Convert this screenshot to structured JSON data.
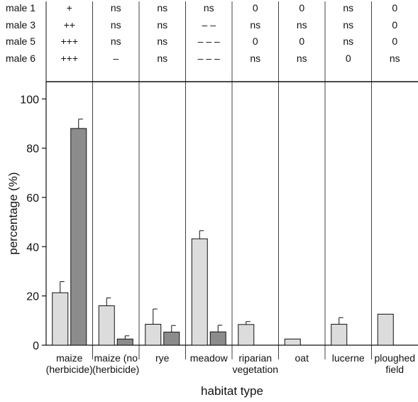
{
  "significance_table": {
    "rows": [
      {
        "label": "male 1",
        "cells": [
          "+",
          "ns",
          "ns",
          "ns",
          "0",
          "0",
          "ns",
          "0"
        ]
      },
      {
        "label": "male 3",
        "cells": [
          "++",
          "ns",
          "ns",
          "– –",
          "ns",
          "ns",
          "ns",
          "0"
        ]
      },
      {
        "label": "male 5",
        "cells": [
          "+++",
          "ns",
          "ns",
          "– – –",
          "0",
          "0",
          "ns",
          "0"
        ]
      },
      {
        "label": "male 6",
        "cells": [
          "+++",
          "–",
          "ns",
          "– – –",
          "ns",
          "ns",
          "0",
          "ns"
        ]
      }
    ]
  },
  "chart_data": {
    "type": "bar",
    "title": "",
    "xlabel": "habitat type",
    "ylabel": "percentage (%)",
    "ylim": [
      0,
      107
    ],
    "yticks": [
      0,
      20,
      40,
      60,
      80,
      100
    ],
    "grid": false,
    "categories": [
      [
        "maize",
        "(herbicide)"
      ],
      [
        "maize (no",
        "(herbicide)"
      ],
      [
        "rye"
      ],
      [
        "meadow"
      ],
      [
        "riparian",
        "vegetation"
      ],
      [
        "oat"
      ],
      [
        "lucerne"
      ],
      [
        "ploughed",
        "field"
      ]
    ],
    "series": [
      {
        "color": "#dcdcdc",
        "values": [
          21.3,
          16,
          8.5,
          43.2,
          8.4,
          2.5,
          8.5,
          12.6
        ],
        "errors": [
          4.5,
          3.2,
          6.2,
          3.3,
          1.2,
          null,
          2.7,
          null
        ]
      },
      {
        "color": "#8c8c8c",
        "values": [
          88,
          2.5,
          5.3,
          5.4,
          null,
          null,
          null,
          null
        ],
        "errors": [
          3.8,
          1.3,
          2.7,
          2.7,
          null,
          null,
          null,
          null
        ]
      }
    ]
  }
}
